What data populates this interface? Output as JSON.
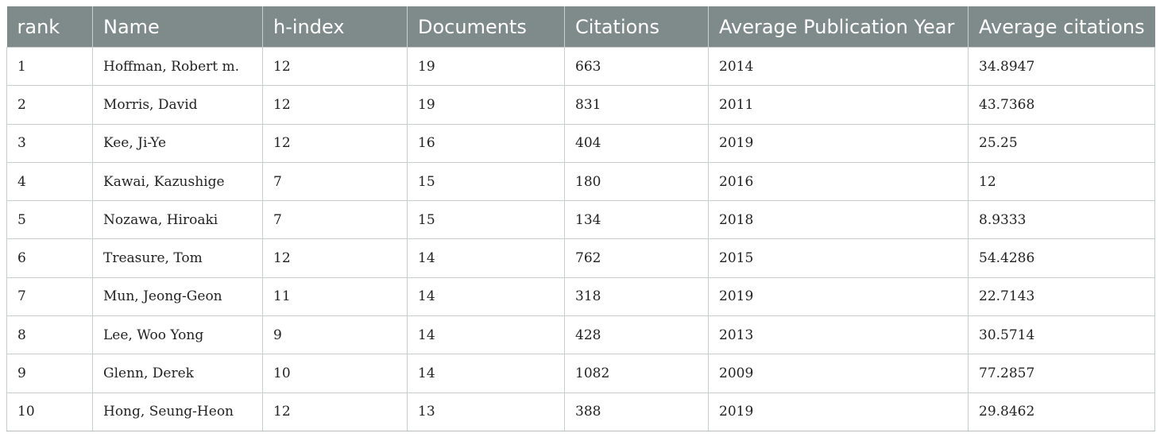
{
  "table": {
    "columns": [
      "rank",
      "Name",
      "h-index",
      "Documents",
      "Citations",
      "Average Publication Year",
      "Average citations"
    ],
    "rows": [
      [
        "1",
        "Hoffman, Robert m.",
        "12",
        "19",
        "663",
        "2014",
        "34.8947"
      ],
      [
        "2",
        "Morris, David",
        "12",
        "19",
        "831",
        "2011",
        "43.7368"
      ],
      [
        "3",
        "Kee, Ji-Ye",
        "12",
        "16",
        "404",
        "2019",
        "25.25"
      ],
      [
        "4",
        "Kawai, Kazushige",
        "7",
        "15",
        "180",
        "2016",
        "12"
      ],
      [
        "5",
        "Nozawa, Hiroaki",
        "7",
        "15",
        "134",
        "2018",
        "8.9333"
      ],
      [
        "6",
        "Treasure, Tom",
        "12",
        "14",
        "762",
        "2015",
        "54.4286"
      ],
      [
        "7",
        "Mun, Jeong-Geon",
        "11",
        "14",
        "318",
        "2019",
        "22.7143"
      ],
      [
        "8",
        "Lee, Woo Yong",
        "9",
        "14",
        "428",
        "2013",
        "30.5714"
      ],
      [
        "9",
        "Glenn, Derek",
        "10",
        "14",
        "1082",
        "2009",
        "77.2857"
      ],
      [
        "10",
        "Hong, Seung-Heon",
        "12",
        "13",
        "388",
        "2019",
        "29.8462"
      ]
    ]
  },
  "colors": {
    "header_bg": "#7f8a8a",
    "header_text": "#ffffff",
    "border": "#c8cccc"
  }
}
